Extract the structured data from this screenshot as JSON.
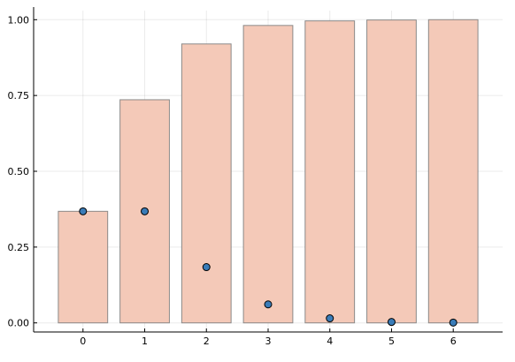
{
  "chart_data": {
    "type": "bar",
    "title": "",
    "xlabel": "",
    "ylabel": "",
    "categories": [
      "0",
      "1",
      "2",
      "3",
      "4",
      "5",
      "6"
    ],
    "series": [
      {
        "kind": "bar",
        "color": "#f4c9b8",
        "values": [
          0.368,
          0.736,
          0.92,
          0.981,
          0.996,
          0.999,
          1.0
        ]
      },
      {
        "kind": "scatter",
        "color": "#3a7cb8",
        "values": [
          0.368,
          0.368,
          0.184,
          0.061,
          0.015,
          0.003,
          0.001
        ]
      }
    ],
    "yticks": [
      "0.00",
      "0.25",
      "0.50",
      "0.75",
      "1.00"
    ],
    "ylim": [
      -0.03,
      1.03
    ],
    "grid": true,
    "legend": "none"
  }
}
